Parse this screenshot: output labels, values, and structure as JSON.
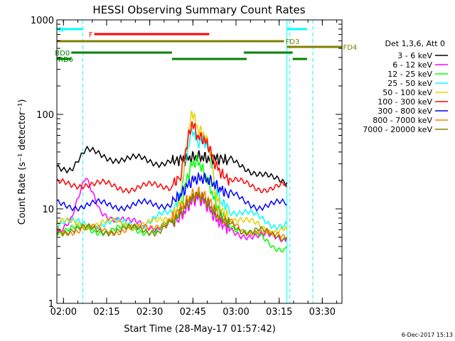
{
  "chart_data": {
    "type": "line",
    "title": "HESSI Observing Summary Count Rates",
    "xlabel": "Start Time (28-May-17 01:57:42)",
    "ylabel": "Count Rate (s⁻¹ detector⁻¹)",
    "yscale": "log",
    "ylim": [
      1,
      1000
    ],
    "xlim": [
      "01:57:42",
      "03:36:50"
    ],
    "x_ticks": [
      "02:00",
      "02:15",
      "02:30",
      "02:45",
      "03:00",
      "03:15",
      "03:30"
    ],
    "y_ticks": [
      "1",
      "10",
      "100",
      "1000"
    ],
    "legend_title": "Det 1,3,6, Att 0",
    "legend_position": "right",
    "timestamp": "6-Dec-2017 15:13",
    "x_minutes": [
      0,
      5,
      10,
      15,
      20,
      25,
      30,
      35,
      40,
      43,
      45,
      47,
      49,
      51,
      53,
      55,
      57,
      60,
      65,
      70,
      75,
      80
    ],
    "series": [
      {
        "name": "3 - 6 keV",
        "color": "#000000",
        "values": [
          28,
          28,
          40,
          37,
          35,
          33,
          33,
          32,
          32,
          33,
          34,
          35,
          36,
          35,
          34,
          34,
          34,
          32,
          29,
          24,
          20,
          19
        ]
      },
      {
        "name": "6 - 12 keV",
        "color": "#ff00ff",
        "values": [
          6,
          8,
          20,
          10,
          8,
          7,
          7,
          6.5,
          7,
          8,
          10,
          12,
          13,
          12,
          10,
          8,
          7,
          6,
          5.5,
          5,
          5,
          5
        ]
      },
      {
        "name": "12 - 25 keV",
        "color": "#00ff00",
        "values": [
          6,
          6,
          6,
          6,
          6,
          6,
          6,
          6,
          7,
          10,
          20,
          30,
          32,
          25,
          18,
          12,
          9,
          7,
          6,
          5,
          4,
          4
        ]
      },
      {
        "name": "25 - 50 keV",
        "color": "#00ffff",
        "values": [
          7,
          7,
          7,
          7,
          7,
          7,
          7,
          8,
          9,
          14,
          35,
          70,
          50,
          55,
          40,
          18,
          12,
          10,
          9,
          8,
          7,
          7
        ]
      },
      {
        "name": "50 - 100 keV",
        "color": "#e8d000",
        "values": [
          7,
          7,
          7,
          7,
          7,
          7,
          7,
          7,
          8,
          12,
          45,
          110,
          70,
          62,
          45,
          15,
          10,
          8,
          7,
          7,
          6,
          6
        ]
      },
      {
        "name": "100 - 300 keV",
        "color": "#ff0000",
        "values": [
          18,
          18,
          19,
          18,
          17,
          17,
          17,
          17,
          18,
          22,
          45,
          82,
          58,
          55,
          45,
          30,
          24,
          20,
          18,
          17,
          17,
          17
        ]
      },
      {
        "name": "300 - 800 keV",
        "color": "#0000ff",
        "values": [
          11,
          11,
          11,
          11,
          11,
          11,
          11,
          11,
          12,
          14,
          17,
          20,
          21,
          21,
          20,
          18,
          16,
          14,
          12,
          11,
          11,
          11
        ]
      },
      {
        "name": "800 - 7000 keV",
        "color": "#ff8000",
        "values": [
          6,
          6,
          6,
          6,
          6,
          6,
          6,
          7,
          8,
          10,
          12,
          14,
          15,
          14,
          12,
          10,
          8,
          7,
          6,
          6,
          5,
          5
        ]
      },
      {
        "name": "7000 - 20000 keV",
        "color": "#808000",
        "values": [
          6,
          6,
          6,
          6,
          6,
          6,
          6,
          6,
          7,
          9,
          11,
          13,
          14,
          13,
          11,
          9,
          8,
          7,
          6,
          6,
          5,
          5
        ]
      }
    ],
    "flag_bars": [
      {
        "label": "N",
        "color": "#00ffff",
        "segments": [
          [
            0,
            9
          ],
          [
            80,
            87
          ]
        ]
      },
      {
        "label": "F",
        "color": "#ff0000",
        "segments": [
          [
            13,
            53
          ]
        ]
      },
      {
        "label": "FD3",
        "color": "#808000",
        "segments": [
          [
            0,
            79
          ]
        ]
      },
      {
        "label": "FD4",
        "color": "#808000",
        "segments": [
          [
            80,
            99
          ]
        ]
      },
      {
        "label": "BD0",
        "color": "#008000",
        "segments": [
          [
            5,
            40
          ],
          [
            65,
            82
          ]
        ]
      },
      {
        "label": "RD6",
        "color": "#008000",
        "segments": [
          [
            0,
            5
          ],
          [
            40,
            66
          ],
          [
            82,
            87
          ]
        ]
      }
    ],
    "vlines": [
      {
        "minute": 0,
        "style": "solid"
      },
      {
        "minute": 9,
        "style": "dashed"
      },
      {
        "minute": 80,
        "style": "solid"
      },
      {
        "minute": 81,
        "style": "dashed"
      },
      {
        "minute": 89,
        "style": "dashed"
      }
    ]
  }
}
